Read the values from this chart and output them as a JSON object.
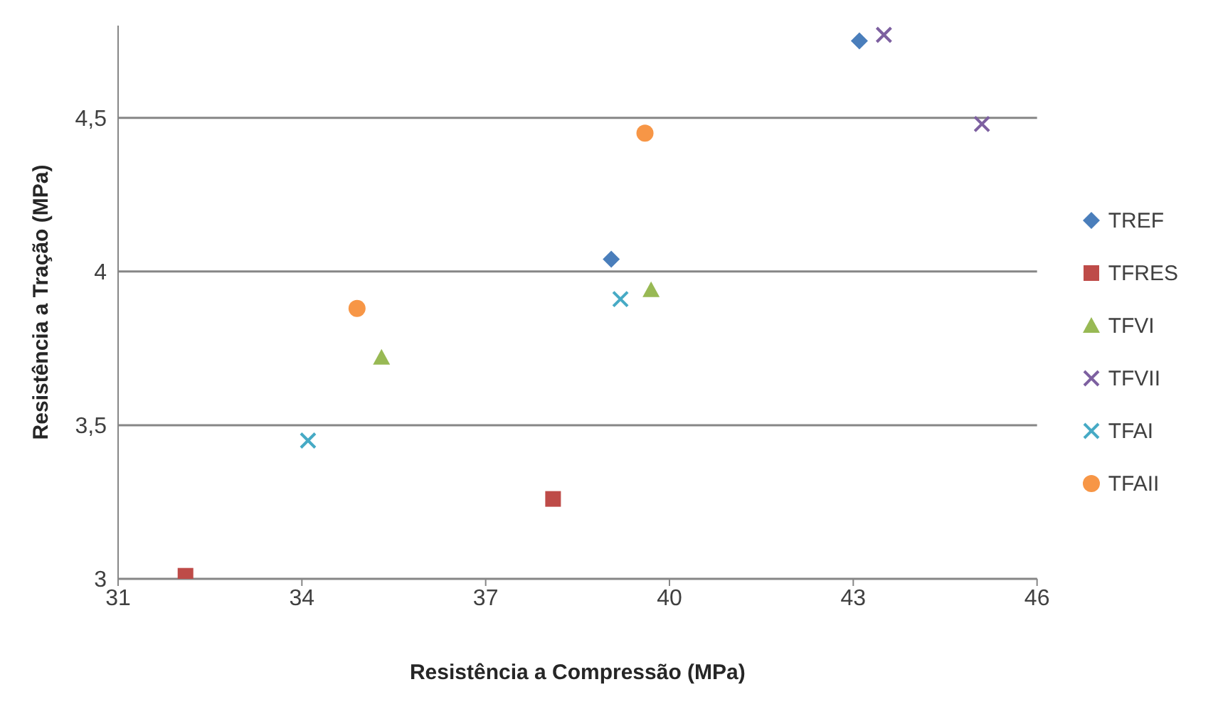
{
  "chart_data": {
    "type": "scatter",
    "xlabel": "Resistência a Compressão (MPa)",
    "ylabel": "Resistência a Tração (MPa)",
    "xlim": [
      31,
      46
    ],
    "xticks": [
      31,
      34,
      37,
      40,
      43,
      46
    ],
    "ylim": [
      3,
      4.8
    ],
    "yticks": [
      3,
      {
        "value": 3.5,
        "label": "3,5"
      },
      4,
      {
        "value": 4.5,
        "label": "4,5"
      }
    ],
    "grid": "y",
    "legend": "right",
    "series": [
      {
        "name": "TREF",
        "color": "#4a7ebb",
        "marker": "diamond",
        "x": [
          43.1,
          39.05
        ],
        "values": [
          4.75,
          4.04
        ]
      },
      {
        "name": "TFRES",
        "color": "#be4b48",
        "marker": "square",
        "x": [
          32.1,
          38.1
        ],
        "values": [
          3.01,
          3.26
        ]
      },
      {
        "name": "TFVI",
        "color": "#98b954",
        "marker": "triangle",
        "x": [
          35.3,
          39.7
        ],
        "values": [
          3.72,
          3.94
        ]
      },
      {
        "name": "TFVII",
        "color": "#7d60a0",
        "marker": "cross",
        "x": [
          43.5,
          45.1
        ],
        "values": [
          4.77,
          4.48
        ]
      },
      {
        "name": "TFAI",
        "color": "#46aac5",
        "marker": "cross",
        "x": [
          34.1,
          39.2
        ],
        "values": [
          3.45,
          3.91
        ]
      },
      {
        "name": "TFAII",
        "color": "#f79646",
        "marker": "circle",
        "x": [
          34.9,
          39.6
        ],
        "values": [
          3.88,
          4.45
        ]
      }
    ]
  }
}
